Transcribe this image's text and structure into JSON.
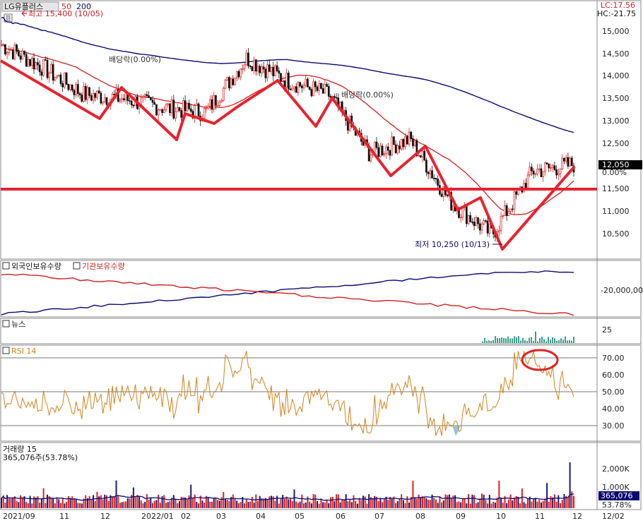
{
  "header": {
    "symbol": "LG유플러스",
    "ma_short": "50",
    "ma_long": "200",
    "high_label": "최고 15,400 (10/05)",
    "lc_label": "LC:17.56",
    "hc_label": "HC:-21.75"
  },
  "price_panel": {
    "low_label": "최저 10,250 (10/13)",
    "overlay_text_1": "배당락(0.00%)",
    "overlay_text_2": "배당락(0.00%)",
    "current_price": "12,050",
    "current_change": "0.00%",
    "y_ticks": [
      "15,000",
      "14,500",
      "14,000",
      "13,500",
      "13,000",
      "12,500",
      "12,000",
      "11,500",
      "11,000",
      "10,500"
    ]
  },
  "holdings_panel": {
    "foreign_label": "외국인보유수량",
    "inst_label": "기관보유수량",
    "y_tick": "-20,000,00",
    "colors": {
      "foreign": "#0a0a6e",
      "institution": "#cc1f1f"
    }
  },
  "news_panel": {
    "label": "뉴스",
    "y_tick": "25"
  },
  "rsi_panel": {
    "label": "RSI 14",
    "y_ticks": [
      "70.00",
      "60.00",
      "50.00",
      "40.00",
      "30.00"
    ],
    "color": "#d4821a"
  },
  "volume_panel": {
    "label": "거래량 15",
    "sub_label": "365,076주(53.78%)",
    "y_ticks": [
      "2,000K",
      "1,000K"
    ],
    "current_value": "365,076",
    "current_pct": "53.78%"
  },
  "x_axis": {
    "labels": [
      "2021/09",
      "11",
      "12",
      "2022/01",
      "02",
      "03",
      "04",
      "05",
      "06",
      "07",
      "08",
      "09",
      "10",
      "11",
      "12",
      "12/02"
    ]
  },
  "chart_data": {
    "type": "line",
    "title": "LG유플러스",
    "x_range": [
      "2021/09",
      "2022/12/02"
    ],
    "ylim": [
      10000,
      15400
    ],
    "price_close_approx": {
      "x": [
        "2021/09",
        "2021/11",
        "2021/12",
        "2022/01",
        "2022/02",
        "2022/03",
        "2022/04",
        "2022/05",
        "2022/06",
        "2022/07",
        "2022/08",
        "2022/09",
        "2022/10",
        "2022/11",
        "2022/12"
      ],
      "values": [
        14700,
        14200,
        13600,
        13500,
        13300,
        13200,
        14400,
        13900,
        13600,
        12300,
        12600,
        11200,
        10500,
        11900,
        12050
      ]
    },
    "moving_averages": [
      {
        "name": "50",
        "color": "#cc1f1f"
      },
      {
        "name": "200",
        "color": "#0a0a6e"
      }
    ],
    "support_line": 11500,
    "annotations": [
      "최고 15,400 (10/05)",
      "최저 10,250 (10/13)"
    ],
    "rsi_reference_lines": [
      70,
      50,
      30
    ]
  }
}
